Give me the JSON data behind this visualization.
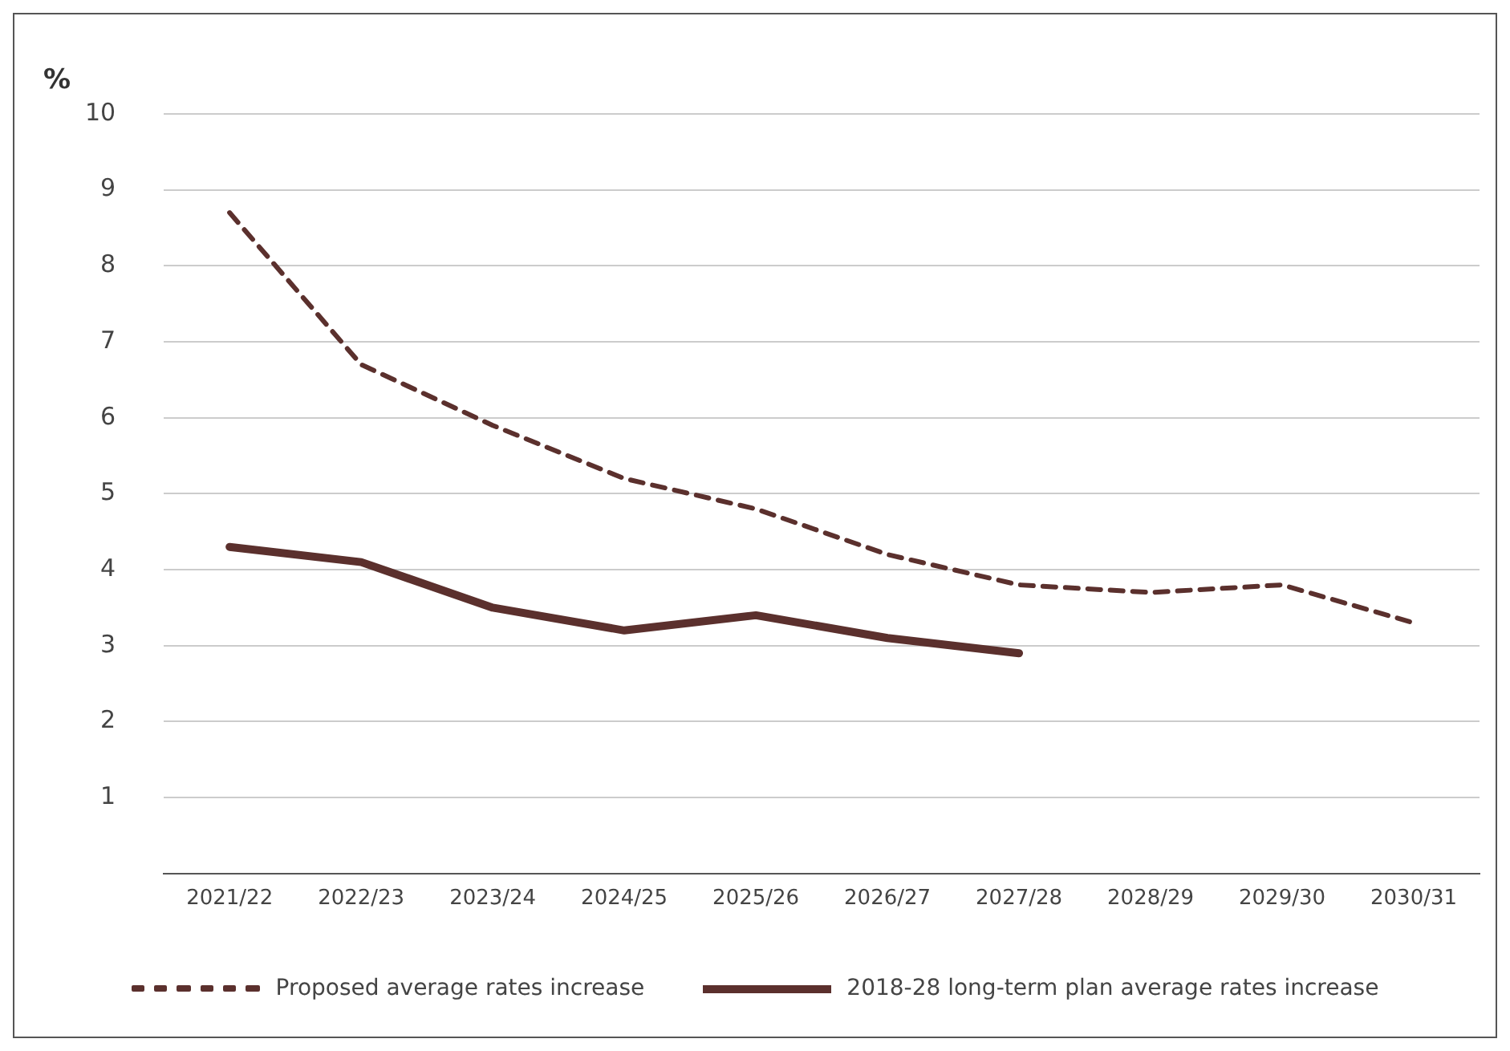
{
  "chart_data": {
    "type": "line",
    "ylabel": "%",
    "categories": [
      "2021/22",
      "2022/23",
      "2023/24",
      "2024/25",
      "2025/26",
      "2026/27",
      "2027/28",
      "2028/29",
      "2029/30",
      "2030/31"
    ],
    "series": [
      {
        "name": "Proposed average rates increase",
        "color": "#5b302d",
        "line_style": "dashed",
        "values": [
          8.7,
          6.7,
          5.9,
          5.2,
          4.8,
          4.2,
          3.8,
          3.7,
          3.8,
          3.3
        ]
      },
      {
        "name": "2018-28 long-term plan average rates increase",
        "color": "#5b302d",
        "line_style": "solid",
        "values": [
          4.3,
          4.1,
          3.5,
          3.2,
          3.4,
          3.1,
          2.9,
          null,
          null,
          null
        ]
      }
    ],
    "ylim": [
      0,
      10
    ],
    "yticks": [
      {
        "value": 0,
        "label": null
      },
      1,
      2,
      3,
      4,
      5,
      6,
      7,
      8,
      9,
      10
    ],
    "grid": "y",
    "legend": "bottom",
    "marker": "none"
  }
}
